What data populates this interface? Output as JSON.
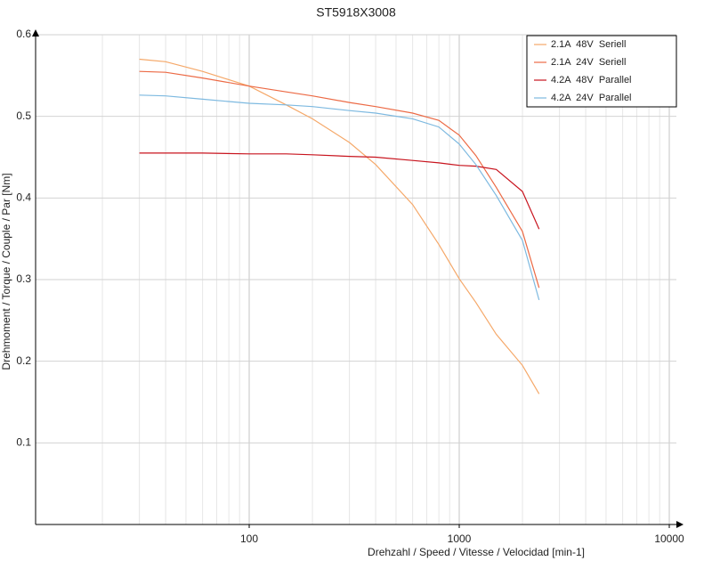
{
  "chart_data": {
    "type": "line",
    "title": "ST5918X3008",
    "x_label": "Drehzahl / Speed / Vitesse / Velocidad [min-1]",
    "y_label": "Drehmoment / Torque / Couple / Par [Nm]",
    "x_log": true,
    "grid": true,
    "legend": "top-right",
    "x": [
      30,
      40,
      60,
      100,
      150,
      200,
      300,
      400,
      600,
      800,
      1000,
      1200,
      1500,
      2000,
      2400
    ],
    "series": [
      {
        "name": "2.1A  48V  Seriell",
        "color": "#f5a869",
        "values": [
          0.57,
          0.567,
          0.555,
          0.537,
          0.514,
          0.497,
          0.468,
          0.441,
          0.392,
          0.343,
          0.301,
          0.272,
          0.233,
          0.195,
          0.16
        ]
      },
      {
        "name": "2.1A  24V  Seriell",
        "color": "#ec6a45",
        "values": [
          0.555,
          0.554,
          0.547,
          0.537,
          0.53,
          0.525,
          0.517,
          0.512,
          0.504,
          0.495,
          0.477,
          0.452,
          0.413,
          0.359,
          0.29
        ]
      },
      {
        "name": "4.2A  48V  Parallel",
        "color": "#c8141e",
        "values": [
          0.455,
          0.455,
          0.455,
          0.454,
          0.454,
          0.453,
          0.451,
          0.45,
          0.446,
          0.443,
          0.44,
          0.439,
          0.435,
          0.408,
          0.362
        ]
      },
      {
        "name": "4.2A  24V  Parallel",
        "color": "#7db9e0",
        "values": [
          0.526,
          0.525,
          0.521,
          0.516,
          0.514,
          0.512,
          0.507,
          0.504,
          0.497,
          0.487,
          0.466,
          0.441,
          0.403,
          0.348,
          0.275
        ]
      }
    ],
    "xlim": [
      10,
      10000
    ],
    "xticks": [
      100,
      1000,
      10000
    ],
    "xticks_minor": [
      20,
      30,
      40,
      50,
      60,
      70,
      80,
      90,
      200,
      300,
      400,
      500,
      600,
      700,
      800,
      900,
      2000,
      3000,
      4000,
      5000,
      6000,
      7000,
      8000,
      9000
    ],
    "ylim": [
      0,
      0.6
    ],
    "yticks": [
      0.1,
      0.2,
      0.3,
      0.4,
      0.5,
      0.6
    ]
  }
}
